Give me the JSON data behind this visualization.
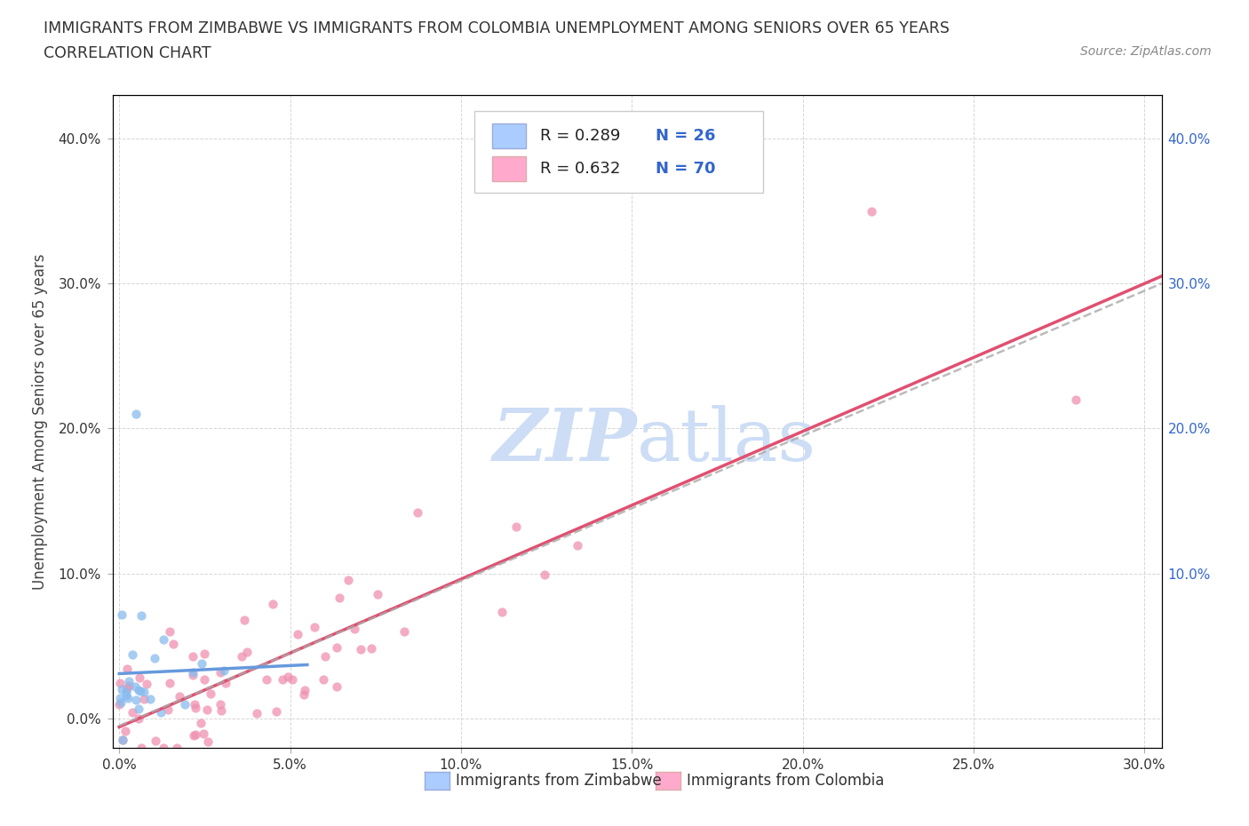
{
  "title_line1": "IMMIGRANTS FROM ZIMBABWE VS IMMIGRANTS FROM COLOMBIA UNEMPLOYMENT AMONG SENIORS OVER 65 YEARS",
  "title_line2": "CORRELATION CHART",
  "source_text": "Source: ZipAtlas.com",
  "ylabel": "Unemployment Among Seniors over 65 years",
  "xlim": [
    -0.002,
    0.305
  ],
  "ylim": [
    -0.02,
    0.43
  ],
  "xticks": [
    0.0,
    0.05,
    0.1,
    0.15,
    0.2,
    0.25,
    0.3
  ],
  "yticks": [
    0.0,
    0.1,
    0.2,
    0.3,
    0.4
  ],
  "zimbabwe_scatter_color": "#88bbee",
  "colombia_scatter_color": "#f090b0",
  "trendline_zimbabwe_blue_color": "#6699dd",
  "trendline_gray_dashed_color": "#aaaaaa",
  "trendline_colombia_color": "#e05070",
  "legend_R_zimbabwe": "0.289",
  "legend_N_zimbabwe": "26",
  "legend_R_colombia": "0.632",
  "legend_N_colombia": "70",
  "legend_color": "#3366cc",
  "legend_box_zim_color": "#aaccff",
  "legend_box_col_color": "#ffaacc",
  "watermark_color": "#ccddf5",
  "background_color": "#ffffff",
  "grid_color": "#cccccc",
  "bottom_legend_zim": "Immigrants from Zimbabwe",
  "bottom_legend_col": "Immigrants from Colombia"
}
